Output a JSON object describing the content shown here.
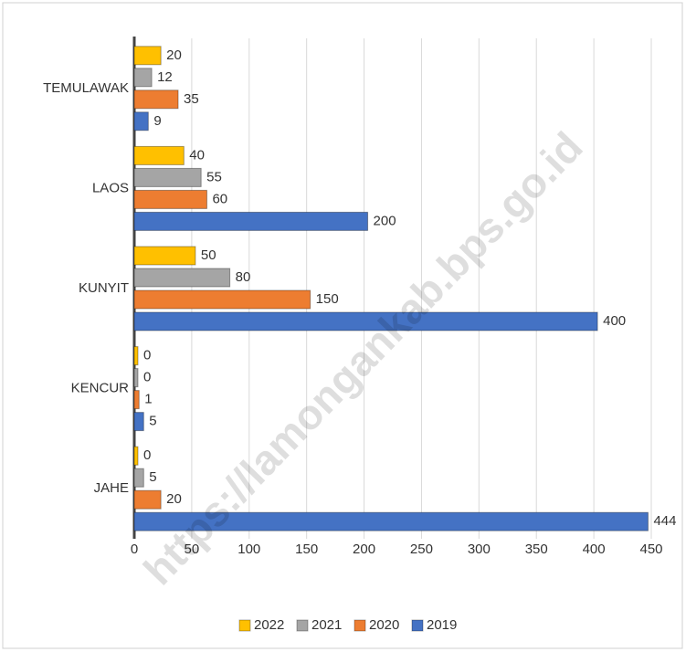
{
  "chart_data": {
    "type": "bar",
    "orientation": "horizontal",
    "categories": [
      "JAHE",
      "KENCUR",
      "KUNYIT",
      "LAOS",
      "TEMULAWAK"
    ],
    "series": [
      {
        "name": "2019",
        "color": "#4472c4",
        "values": [
          444,
          5,
          400,
          200,
          9
        ]
      },
      {
        "name": "2020",
        "color": "#ed7d31",
        "values": [
          20,
          1,
          150,
          60,
          35
        ]
      },
      {
        "name": "2021",
        "color": "#a5a5a5",
        "values": [
          5,
          0,
          80,
          55,
          12
        ]
      },
      {
        "name": "2022",
        "color": "#ffc000",
        "values": [
          0,
          0,
          50,
          40,
          20
        ]
      }
    ],
    "xlim": [
      0,
      450
    ],
    "xticks": [
      0,
      50,
      100,
      150,
      200,
      250,
      300,
      350,
      400,
      450
    ],
    "grid": true,
    "legend": "bottom",
    "watermark": "https://lamongankab.bps.go.id"
  }
}
